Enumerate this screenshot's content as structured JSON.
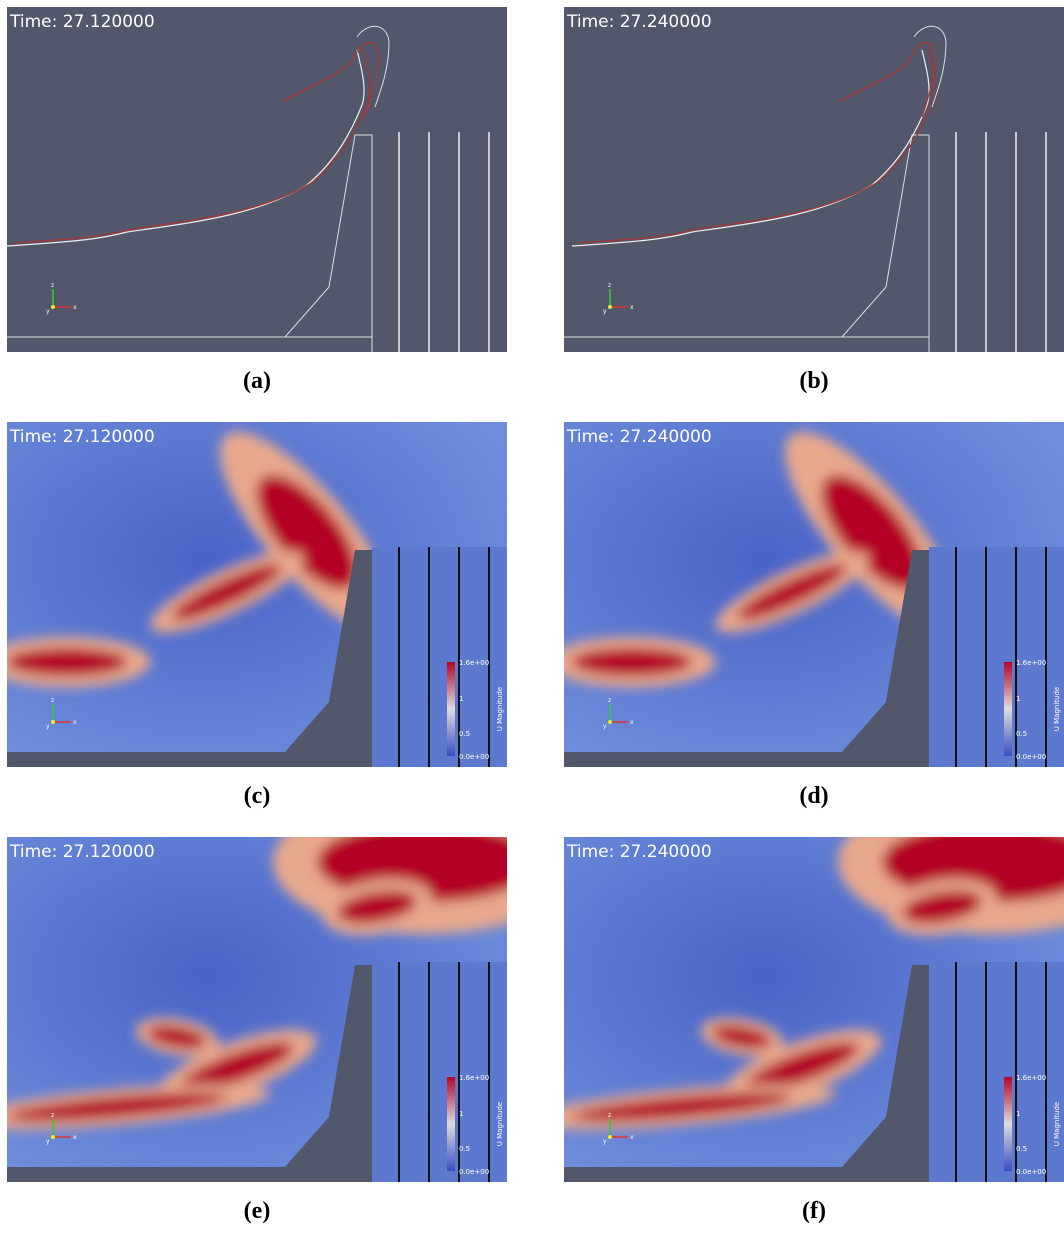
{
  "panels": [
    {
      "time": "Time: 27.120000",
      "caption": "(a)"
    },
    {
      "time": "Time: 27.240000",
      "caption": "(b)"
    },
    {
      "time": "Time: 27.120000",
      "caption": "(c)",
      "colorbar": {
        "ticks": [
          "1.6e+00",
          "1",
          "0.5",
          "0.0e+00"
        ],
        "title": "U Magnitude"
      }
    },
    {
      "time": "Time: 27.240000",
      "caption": "(d)",
      "colorbar": {
        "ticks": [
          "1.6e+00",
          "1",
          "0.5",
          "0.0e+00"
        ],
        "title": "U Magnitude"
      }
    },
    {
      "time": "Time: 27.120000",
      "caption": "(e)",
      "colorbar": {
        "ticks": [
          "1.6e+00",
          "1",
          "0.5",
          "0.0e+00"
        ],
        "title": "U Magnitude"
      }
    },
    {
      "time": "Time: 27.240000",
      "caption": "(f)",
      "colorbar": {
        "ticks": [
          "1.6e+00",
          "1",
          "0.5",
          "0.0e+00"
        ],
        "title": "U Magnitude"
      }
    }
  ],
  "triad": [
    "x",
    "y",
    "z"
  ]
}
